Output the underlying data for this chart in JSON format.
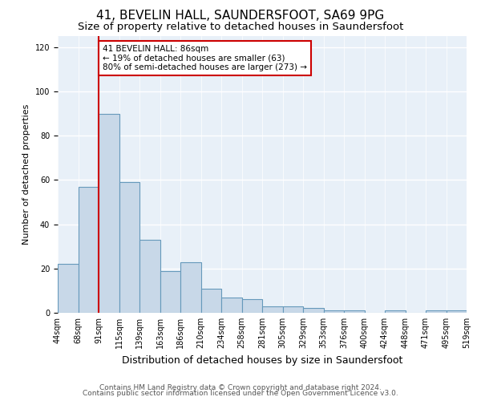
{
  "title1": "41, BEVELIN HALL, SAUNDERSFOOT, SA69 9PG",
  "title2": "Size of property relative to detached houses in Saundersfoot",
  "xlabel": "Distribution of detached houses by size in Saundersfoot",
  "ylabel": "Number of detached properties",
  "footer1": "Contains HM Land Registry data © Crown copyright and database right 2024.",
  "footer2": "Contains public sector information licensed under the Open Government Licence v3.0.",
  "categories": [
    "44sqm",
    "68sqm",
    "91sqm",
    "115sqm",
    "139sqm",
    "163sqm",
    "186sqm",
    "210sqm",
    "234sqm",
    "258sqm",
    "281sqm",
    "305sqm",
    "329sqm",
    "353sqm",
    "376sqm",
    "400sqm",
    "424sqm",
    "448sqm",
    "471sqm",
    "495sqm",
    "519sqm"
  ],
  "bar_heights": [
    22,
    57,
    90,
    59,
    33,
    19,
    23,
    11,
    7,
    6,
    3,
    3,
    2,
    1,
    1,
    0,
    1,
    0,
    1,
    1
  ],
  "bar_color": "#c8d8e8",
  "bar_edge_color": "#6699bb",
  "bar_edge_width": 0.8,
  "vline_x": 2,
  "vline_color": "#cc0000",
  "annotation_text": "41 BEVELIN HALL: 86sqm\n← 19% of detached houses are smaller (63)\n80% of semi-detached houses are larger (273) →",
  "annotation_box_color": "white",
  "annotation_box_edge": "#cc0000",
  "ylim": [
    0,
    125
  ],
  "yticks": [
    0,
    20,
    40,
    60,
    80,
    100,
    120
  ],
  "bg_color": "#e8f0f8",
  "grid_color": "white",
  "title1_fontsize": 11,
  "title2_fontsize": 9.5,
  "xlabel_fontsize": 9,
  "ylabel_fontsize": 8,
  "tick_fontsize": 7,
  "footer_fontsize": 6.5,
  "ann_fontsize": 7.5
}
